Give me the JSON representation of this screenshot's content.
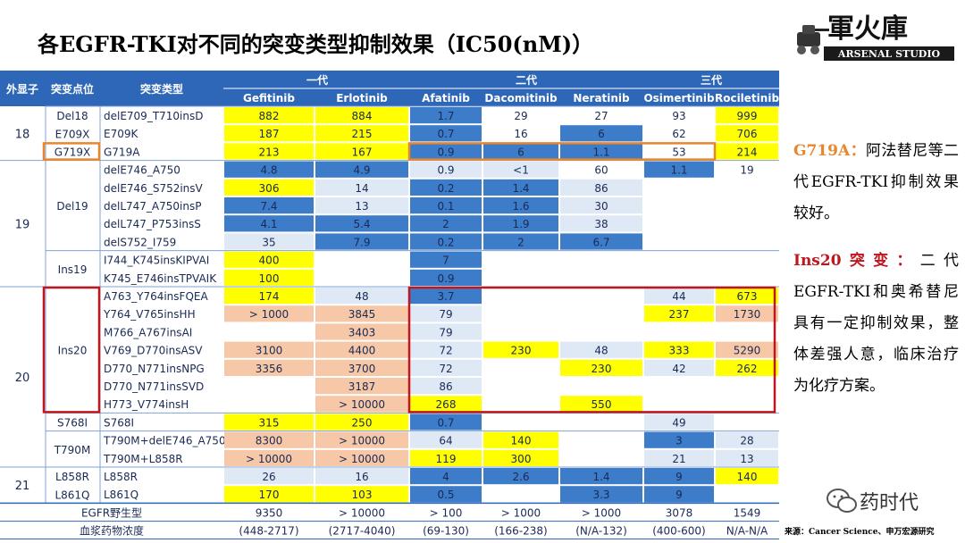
{
  "title": "各EGFR-TKI对不同的突变类型抑制效果（IC50(nM)）",
  "logo": {
    "main": "軍火庫",
    "sub": "ARSENAL STUDIO"
  },
  "table": {
    "head": {
      "exon": "外显子",
      "site": "突变点位",
      "type": "突变类型",
      "gen1": "一代",
      "gen2": "二代",
      "gen3": "三代",
      "drugs": [
        "Gefitinib",
        "Erlotinib",
        "Afatinib",
        "Dacomitinib",
        "Neratinib",
        "Osimertinib",
        "Rociletinib"
      ]
    },
    "exons": [
      "18",
      "19",
      "20",
      "21"
    ],
    "sites": [
      "Del18",
      "E709X",
      "G719X",
      "Del19",
      "Ins19",
      "Ins20",
      "S768I",
      "T790M",
      "L858R",
      "L861Q"
    ],
    "rows": [
      {
        "type": "delE709_T710insD",
        "v": [
          "882",
          "884",
          "1.7",
          "29",
          "27",
          "93",
          "999"
        ]
      },
      {
        "type": "E709K",
        "v": [
          "187",
          "215",
          "0.7",
          "16",
          "6",
          "62",
          "706"
        ]
      },
      {
        "type": "G719A",
        "v": [
          "213",
          "167",
          "0.9",
          "6",
          "1.1",
          "53",
          "214"
        ]
      },
      {
        "type": "delE746_A750",
        "v": [
          "4.8",
          "4.9",
          "0.9",
          "<1",
          "60",
          "1.1",
          "19"
        ]
      },
      {
        "type": "delE746_S752insV",
        "v": [
          "306",
          "14",
          "0.2",
          "1.4",
          "86",
          "",
          ""
        ]
      },
      {
        "type": "delL747_A750insP",
        "v": [
          "7.4",
          "13",
          "0.1",
          "1.6",
          "30",
          "",
          ""
        ]
      },
      {
        "type": "delL747_P753insS",
        "v": [
          "4.1",
          "5.4",
          "2",
          "1.9",
          "38",
          "",
          ""
        ]
      },
      {
        "type": "delS752_I759",
        "v": [
          "35",
          "7.9",
          "0.2",
          "2",
          "6.7",
          "",
          ""
        ]
      },
      {
        "type": "I744_K745insKIPVAI",
        "v": [
          "400",
          "",
          "7",
          "",
          "",
          "",
          ""
        ]
      },
      {
        "type": "K745_E746insTPVAIK",
        "v": [
          "100",
          "",
          "0.9",
          "",
          "",
          "",
          ""
        ]
      },
      {
        "type": "A763_Y764insFQEA",
        "v": [
          "174",
          "48",
          "3.7",
          "",
          "",
          "44",
          "673"
        ]
      },
      {
        "type": "Y764_V765insHH",
        "v": [
          "> 1000",
          "3845",
          "79",
          "",
          "",
          "237",
          "1730"
        ]
      },
      {
        "type": "M766_A767insAI",
        "v": [
          "",
          "3403",
          "79",
          "",
          "",
          "",
          ""
        ]
      },
      {
        "type": "V769_D770insASV",
        "v": [
          "3100",
          "4400",
          "72",
          "230",
          "48",
          "333",
          "5290"
        ]
      },
      {
        "type": "D770_N771insNPG",
        "v": [
          "3356",
          "3700",
          "72",
          "",
          "230",
          "42",
          "262"
        ]
      },
      {
        "type": "D770_N771insSVD",
        "v": [
          "",
          "3187",
          "86",
          "",
          "",
          "",
          ""
        ]
      },
      {
        "type": "H773_V774insH",
        "v": [
          "",
          "> 10000",
          "268",
          "",
          "550",
          "",
          ""
        ]
      },
      {
        "type": "S768I",
        "v": [
          "315",
          "250",
          "0.7",
          "",
          "",
          "49",
          ""
        ]
      },
      {
        "type": "T790M+delE746_A750",
        "v": [
          "8300",
          "> 10000",
          "64",
          "140",
          "",
          "3",
          "28"
        ]
      },
      {
        "type": "T790M+L858R",
        "v": [
          "> 10000",
          "> 10000",
          "119",
          "300",
          "",
          "21",
          "13"
        ]
      },
      {
        "type": "L858R",
        "v": [
          "26",
          "16",
          "4",
          "2.6",
          "1.4",
          "9",
          "140"
        ]
      },
      {
        "type": "L861Q",
        "v": [
          "170",
          "103",
          "0.5",
          "",
          "3.3",
          "9",
          ""
        ]
      }
    ],
    "wild": {
      "label": "EGFR野生型",
      "v": [
        "9350",
        "> 10000",
        "> 100",
        "> 1000",
        "> 1000",
        "3078",
        "1549"
      ]
    },
    "plasma": {
      "label": "血浆药物浓度",
      "v": [
        "(448-2717)",
        "(2717-4040)",
        "(69-130)",
        "(166-238)",
        "(N/A-132)",
        "(400-600)",
        "N/A-N/A"
      ]
    }
  },
  "notes": {
    "n1_key": "G719A：",
    "n1_text": "阿法替尼等二代EGFR-TKI抑制效果较好。",
    "n2_key": "Ins20突变：",
    "n2_text": "二代EGFR-TKI和奥希替尼具有一定抑制效果，整体差强人意，临床治疗为化疗方案。"
  },
  "wechat": "药时代",
  "source": "来源：Cancer Science、申万宏源研究",
  "colors": {
    "yellow": "#ffff00",
    "dark": "#3d7cc9",
    "light": "#dfe9f5",
    "peach": "#f6c8a8",
    "header": "#2e66b8",
    "box_orange": "#e8862e",
    "box_red": "#c0161e"
  }
}
